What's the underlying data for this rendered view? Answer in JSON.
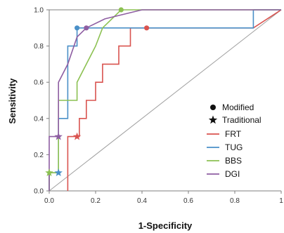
{
  "chart_data": {
    "type": "line",
    "title": "",
    "xlabel": "1-Specificity",
    "ylabel": "Sensitivity",
    "xlim": [
      0,
      1
    ],
    "ylim": [
      0,
      1
    ],
    "x_ticks": [
      "0.0",
      "0.2",
      "0.4",
      "0.6",
      "0.8",
      "1"
    ],
    "y_ticks": [
      "0.0",
      "0.2",
      "0.4",
      "0.6",
      "0.8",
      "1.0"
    ],
    "grid": false,
    "legend_position": "bottom-right",
    "reference_line": {
      "x": [
        0,
        1
      ],
      "y": [
        0,
        1
      ],
      "color": "#a0a0a0"
    },
    "marker_legend": [
      {
        "label": "Modified",
        "marker": "circle"
      },
      {
        "label": "Traditional",
        "marker": "star"
      }
    ],
    "series": [
      {
        "name": "FRT",
        "color": "#d9534f",
        "points": [
          [
            0.08,
            0
          ],
          [
            0.08,
            0.3
          ],
          [
            0.13,
            0.3
          ],
          [
            0.13,
            0.4
          ],
          [
            0.16,
            0.4
          ],
          [
            0.16,
            0.5
          ],
          [
            0.2,
            0.5
          ],
          [
            0.2,
            0.6
          ],
          [
            0.23,
            0.6
          ],
          [
            0.23,
            0.7
          ],
          [
            0.3,
            0.7
          ],
          [
            0.3,
            0.8
          ],
          [
            0.35,
            0.8
          ],
          [
            0.35,
            0.9
          ],
          [
            0.42,
            0.9
          ],
          [
            0.88,
            0.9
          ],
          [
            1,
            1
          ]
        ],
        "modified": [
          0.42,
          0.9
        ],
        "traditional": [
          0.12,
          0.3
        ]
      },
      {
        "name": "TUG",
        "color": "#4a90c8",
        "points": [
          [
            0,
            0
          ],
          [
            0,
            0.1
          ],
          [
            0.04,
            0.1
          ],
          [
            0.04,
            0.4
          ],
          [
            0.08,
            0.4
          ],
          [
            0.08,
            0.8
          ],
          [
            0.12,
            0.8
          ],
          [
            0.12,
            0.9
          ],
          [
            0.88,
            0.9
          ],
          [
            0.88,
            1
          ],
          [
            1,
            1
          ]
        ],
        "modified": [
          0.12,
          0.9
        ],
        "traditional": [
          0.04,
          0.1
        ]
      },
      {
        "name": "BBS",
        "color": "#8cc152",
        "points": [
          [
            0,
            0
          ],
          [
            0,
            0.1
          ],
          [
            0.04,
            0.1
          ],
          [
            0.04,
            0.5
          ],
          [
            0.12,
            0.5
          ],
          [
            0.12,
            0.6
          ],
          [
            0.16,
            0.7
          ],
          [
            0.2,
            0.8
          ],
          [
            0.23,
            0.9
          ],
          [
            0.27,
            0.95
          ],
          [
            0.31,
            1
          ],
          [
            1,
            1
          ]
        ],
        "modified": [
          0.31,
          1.0
        ],
        "traditional": [
          0.0,
          0.1
        ]
      },
      {
        "name": "DGI",
        "color": "#8e5ea2",
        "points": [
          [
            0,
            0
          ],
          [
            0,
            0.3
          ],
          [
            0.04,
            0.3
          ],
          [
            0.04,
            0.6
          ],
          [
            0.08,
            0.7
          ],
          [
            0.12,
            0.85
          ],
          [
            0.16,
            0.9
          ],
          [
            0.24,
            0.95
          ],
          [
            0.4,
            1
          ],
          [
            1,
            1
          ]
        ],
        "modified": [
          0.16,
          0.9
        ],
        "traditional": [
          0.04,
          0.3
        ]
      }
    ]
  }
}
